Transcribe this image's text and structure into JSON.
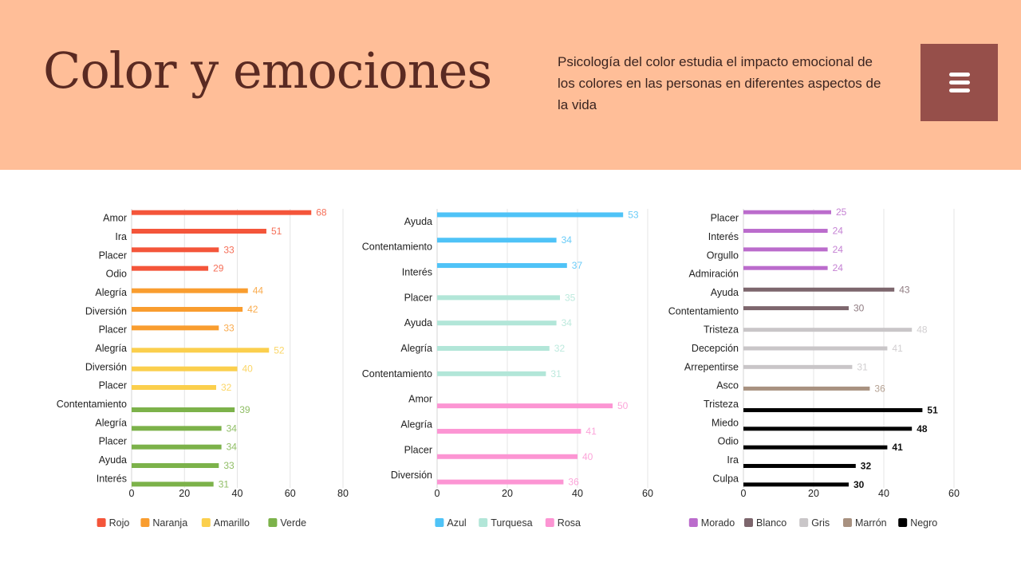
{
  "header": {
    "title": "Color y emociones",
    "subtitle": "Psicología del color estudia el impacto emocional de los colores en las personas en diferentes aspectos de la vida",
    "menu_icon": "hamburger-menu-icon",
    "background": "#ffbe98",
    "menu_color": "#964f4a"
  },
  "chart_data": [
    {
      "type": "bar",
      "orientation": "horizontal",
      "xlim": [
        0,
        80
      ],
      "xticks": [
        "0",
        "20",
        "40",
        "60",
        "80"
      ],
      "grid": true,
      "legend": "bottom",
      "series": [
        {
          "name": "Rojo",
          "color": "#f4553a",
          "labels": [
            "Amor",
            "Ira",
            "Placer",
            "Odio"
          ],
          "values": [
            68,
            51,
            33,
            29
          ]
        },
        {
          "name": "Naranja",
          "color": "#f99d2f",
          "labels": [
            "Alegría",
            "Diversión",
            "Placer"
          ],
          "values": [
            44,
            42,
            33
          ]
        },
        {
          "name": "Amarillo",
          "color": "#fbcf4d",
          "labels": [
            "Alegría",
            "Diversión",
            "Placer"
          ],
          "values": [
            52,
            40,
            32
          ]
        },
        {
          "name": "Verde",
          "color": "#7cb24a",
          "labels": [
            "Contentamiento",
            "Alegría",
            "Placer",
            "Ayuda",
            "Interés"
          ],
          "values": [
            39,
            34,
            34,
            33,
            31
          ]
        }
      ]
    },
    {
      "type": "bar",
      "orientation": "horizontal",
      "xlim": [
        0,
        60
      ],
      "xticks": [
        "0",
        "20",
        "40",
        "60"
      ],
      "grid": true,
      "legend": "bottom",
      "series": [
        {
          "name": "Azul",
          "color": "#4fc3f7",
          "labels": [
            "Ayuda",
            "Contentamiento",
            "Interés"
          ],
          "values": [
            53,
            34,
            37
          ]
        },
        {
          "name": "Turquesa",
          "color": "#b2e6d8",
          "labels": [
            "Placer",
            "Ayuda",
            "Alegría",
            "Contentamiento"
          ],
          "values": [
            35,
            34,
            32,
            31
          ]
        },
        {
          "name": "Rosa",
          "color": "#fc95d3",
          "labels": [
            "Amor",
            "Alegría",
            "Placer",
            "Diversión"
          ],
          "values": [
            50,
            41,
            40,
            36
          ]
        }
      ]
    },
    {
      "type": "bar",
      "orientation": "horizontal",
      "xlim": [
        0,
        60
      ],
      "xticks": [
        "0",
        "20",
        "40",
        "60"
      ],
      "grid": true,
      "legend": "bottom",
      "series": [
        {
          "name": "Morado",
          "color": "#bb6ccc",
          "labels": [
            "Placer",
            "Interés",
            "Orgullo",
            "Admiración"
          ],
          "values": [
            25,
            24,
            24,
            24
          ]
        },
        {
          "name": "Blanco",
          "color": "#7d666d",
          "labels": [
            "Ayuda",
            "Contentamiento"
          ],
          "values": [
            43,
            30
          ]
        },
        {
          "name": "Gris",
          "color": "#c9c6c8",
          "labels": [
            "Tristeza",
            "Decepción",
            "Arrepentirse"
          ],
          "values": [
            48,
            41,
            31
          ]
        },
        {
          "name": "Marrón",
          "color": "#a89180",
          "labels": [
            "Asco"
          ],
          "values": [
            36
          ]
        },
        {
          "name": "Negro",
          "color": "#000000",
          "labels": [
            "Tristeza",
            "Miedo",
            "Odio",
            "Ira",
            "Culpa"
          ],
          "values": [
            51,
            48,
            41,
            32,
            30
          ]
        }
      ]
    }
  ]
}
